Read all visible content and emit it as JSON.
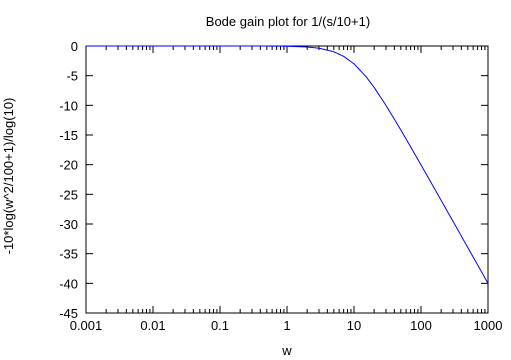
{
  "chart_data": {
    "type": "line",
    "title": "Bode gain plot for 1/(s/10+1)",
    "xlabel": "w",
    "ylabel": "-10*log(w^2/100+1)/log(10)",
    "x_scale": "log",
    "xlim": [
      0.001,
      1000
    ],
    "ylim": [
      -45,
      0
    ],
    "x_ticks": [
      0.001,
      0.01,
      0.1,
      1,
      10,
      100,
      1000
    ],
    "x_tick_labels": [
      "0.001",
      "0.01",
      "0.1",
      "1",
      "10",
      "100",
      "1000"
    ],
    "y_ticks": [
      0,
      -5,
      -10,
      -15,
      -20,
      -25,
      -30,
      -35,
      -40,
      -45
    ],
    "y_tick_labels": [
      "0",
      "-5",
      "-10",
      "-15",
      "-20",
      "-25",
      "-30",
      "-35",
      "-40",
      "-45"
    ],
    "grid": false,
    "series": [
      {
        "color": "#0000ff",
        "x": [
          0.001,
          0.01,
          0.1,
          0.5,
          1,
          2,
          3,
          5,
          7,
          10,
          15,
          20,
          30,
          50,
          70,
          100,
          150,
          200,
          300,
          500,
          700,
          1000
        ],
        "y": [
          0,
          0,
          0,
          -0.01,
          -0.04,
          -0.17,
          -0.37,
          -0.97,
          -1.74,
          -3.01,
          -5.12,
          -6.99,
          -10.0,
          -14.15,
          -16.99,
          -20.04,
          -23.53,
          -26.03,
          -29.54,
          -33.98,
          -36.9,
          -40.0
        ]
      }
    ]
  }
}
